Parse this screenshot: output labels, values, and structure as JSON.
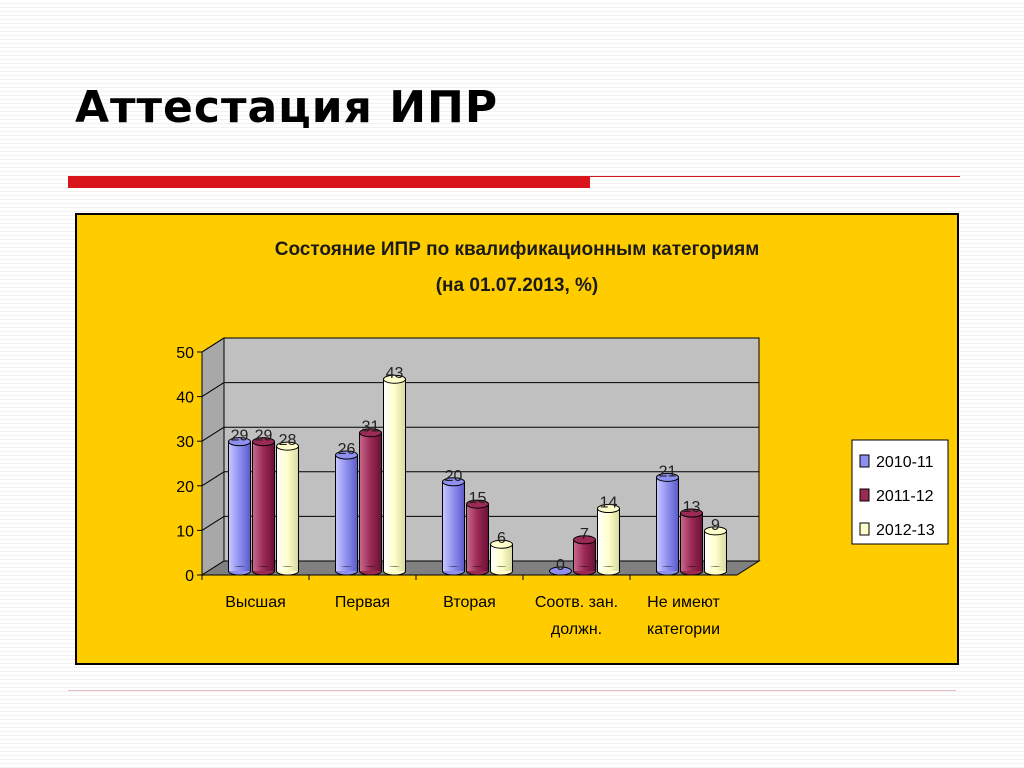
{
  "slide": {
    "title": "Аттестация ИПР"
  },
  "chart_data": {
    "type": "bar",
    "title": "Состояние ИПР по квалификационным категориям",
    "subtitle": "(на 01.07.2013, %)",
    "categories": [
      [
        "Высшая"
      ],
      [
        "Первая"
      ],
      [
        "Вторая"
      ],
      [
        "Соотв. зан.",
        "должн."
      ],
      [
        "Не имеют",
        "категории"
      ]
    ],
    "series": [
      {
        "name": "2010-11",
        "values": [
          29,
          26,
          20,
          0,
          21
        ],
        "color": "#8f8ff0"
      },
      {
        "name": "2011-12",
        "values": [
          29,
          31,
          15,
          7,
          13
        ],
        "color": "#9b2a55"
      },
      {
        "name": "2012-13",
        "values": [
          28,
          43,
          6,
          14,
          9
        ],
        "color": "#ffffcc"
      }
    ],
    "yticks": [
      "0",
      "10",
      "20",
      "30",
      "40",
      "50"
    ],
    "ylim": [
      0,
      50
    ],
    "grid": true,
    "legend": "right",
    "colors": {
      "background": "#ffcc00",
      "plot_wall": "#c0c0c0",
      "floor": "#808080"
    }
  }
}
